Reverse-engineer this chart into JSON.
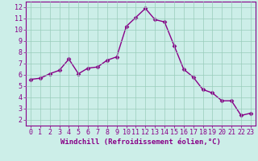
{
  "x": [
    0,
    1,
    2,
    3,
    4,
    5,
    6,
    7,
    8,
    9,
    10,
    11,
    12,
    13,
    14,
    15,
    16,
    17,
    18,
    19,
    20,
    21,
    22,
    23
  ],
  "y": [
    5.6,
    5.7,
    6.1,
    6.4,
    7.4,
    6.1,
    6.6,
    6.7,
    7.3,
    7.6,
    10.3,
    11.1,
    11.9,
    10.9,
    10.7,
    8.6,
    6.5,
    5.8,
    4.7,
    4.4,
    3.7,
    3.7,
    2.4,
    2.6
  ],
  "line_color": "#880088",
  "marker": "D",
  "markersize": 2.5,
  "linewidth": 1.0,
  "xlabel": "Windchill (Refroidissement éolien,°C)",
  "xlabel_fontsize": 6.5,
  "xlim": [
    -0.5,
    23.5
  ],
  "ylim": [
    1.5,
    12.5
  ],
  "yticks": [
    2,
    3,
    4,
    5,
    6,
    7,
    8,
    9,
    10,
    11,
    12
  ],
  "xticks": [
    0,
    1,
    2,
    3,
    4,
    5,
    6,
    7,
    8,
    9,
    10,
    11,
    12,
    13,
    14,
    15,
    16,
    17,
    18,
    19,
    20,
    21,
    22,
    23
  ],
  "grid_color": "#99ccbb",
  "bg_color": "#cceee8",
  "tick_fontsize": 6.0,
  "tick_label_color": "#880088",
  "spine_color": "#880088"
}
